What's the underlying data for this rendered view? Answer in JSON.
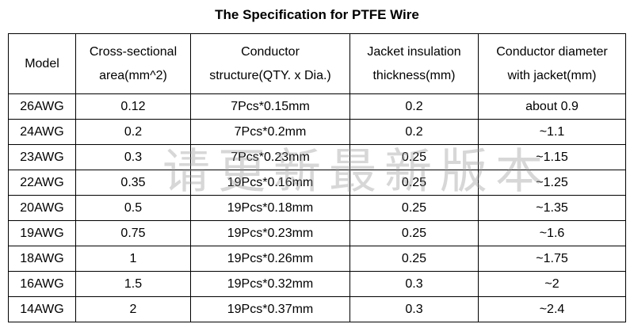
{
  "title": "The Specification for PTFE Wire",
  "headers": {
    "model": "Model",
    "area_l1": "Cross-sectional",
    "area_l2": "area(mm^2)",
    "structure_l1": "Conductor",
    "structure_l2": "structure(QTY. x Dia.)",
    "jacket_l1": "Jacket insulation",
    "jacket_l2": "thickness(mm)",
    "diameter_l1": "Conductor diameter",
    "diameter_l2": "with jacket(mm)"
  },
  "rows": [
    {
      "model": "26AWG",
      "area": "0.12",
      "structure": "7Pcs*0.15mm",
      "jacket": "0.2",
      "diameter": "about 0.9"
    },
    {
      "model": "24AWG",
      "area": "0.2",
      "structure": "7Pcs*0.2mm",
      "jacket": "0.2",
      "diameter": "~1.1"
    },
    {
      "model": "23AWG",
      "area": "0.3",
      "structure": "7Pcs*0.23mm",
      "jacket": "0.25",
      "diameter": "~1.15"
    },
    {
      "model": "22AWG",
      "area": "0.35",
      "structure": "19Pcs*0.16mm",
      "jacket": "0.25",
      "diameter": "~1.25"
    },
    {
      "model": "20AWG",
      "area": "0.5",
      "structure": "19Pcs*0.18mm",
      "jacket": "0.25",
      "diameter": "~1.35"
    },
    {
      "model": "19AWG",
      "area": "0.75",
      "structure": "19Pcs*0.23mm",
      "jacket": "0.25",
      "diameter": "~1.6"
    },
    {
      "model": "18AWG",
      "area": "1",
      "structure": "19Pcs*0.26mm",
      "jacket": "0.25",
      "diameter": "~1.75"
    },
    {
      "model": "16AWG",
      "area": "1.5",
      "structure": "19Pcs*0.32mm",
      "jacket": "0.3",
      "diameter": "~2"
    },
    {
      "model": "14AWG",
      "area": "2",
      "structure": "19Pcs*0.37mm",
      "jacket": "0.3",
      "diameter": "~2.4"
    }
  ],
  "watermark": "请更新最新版本"
}
